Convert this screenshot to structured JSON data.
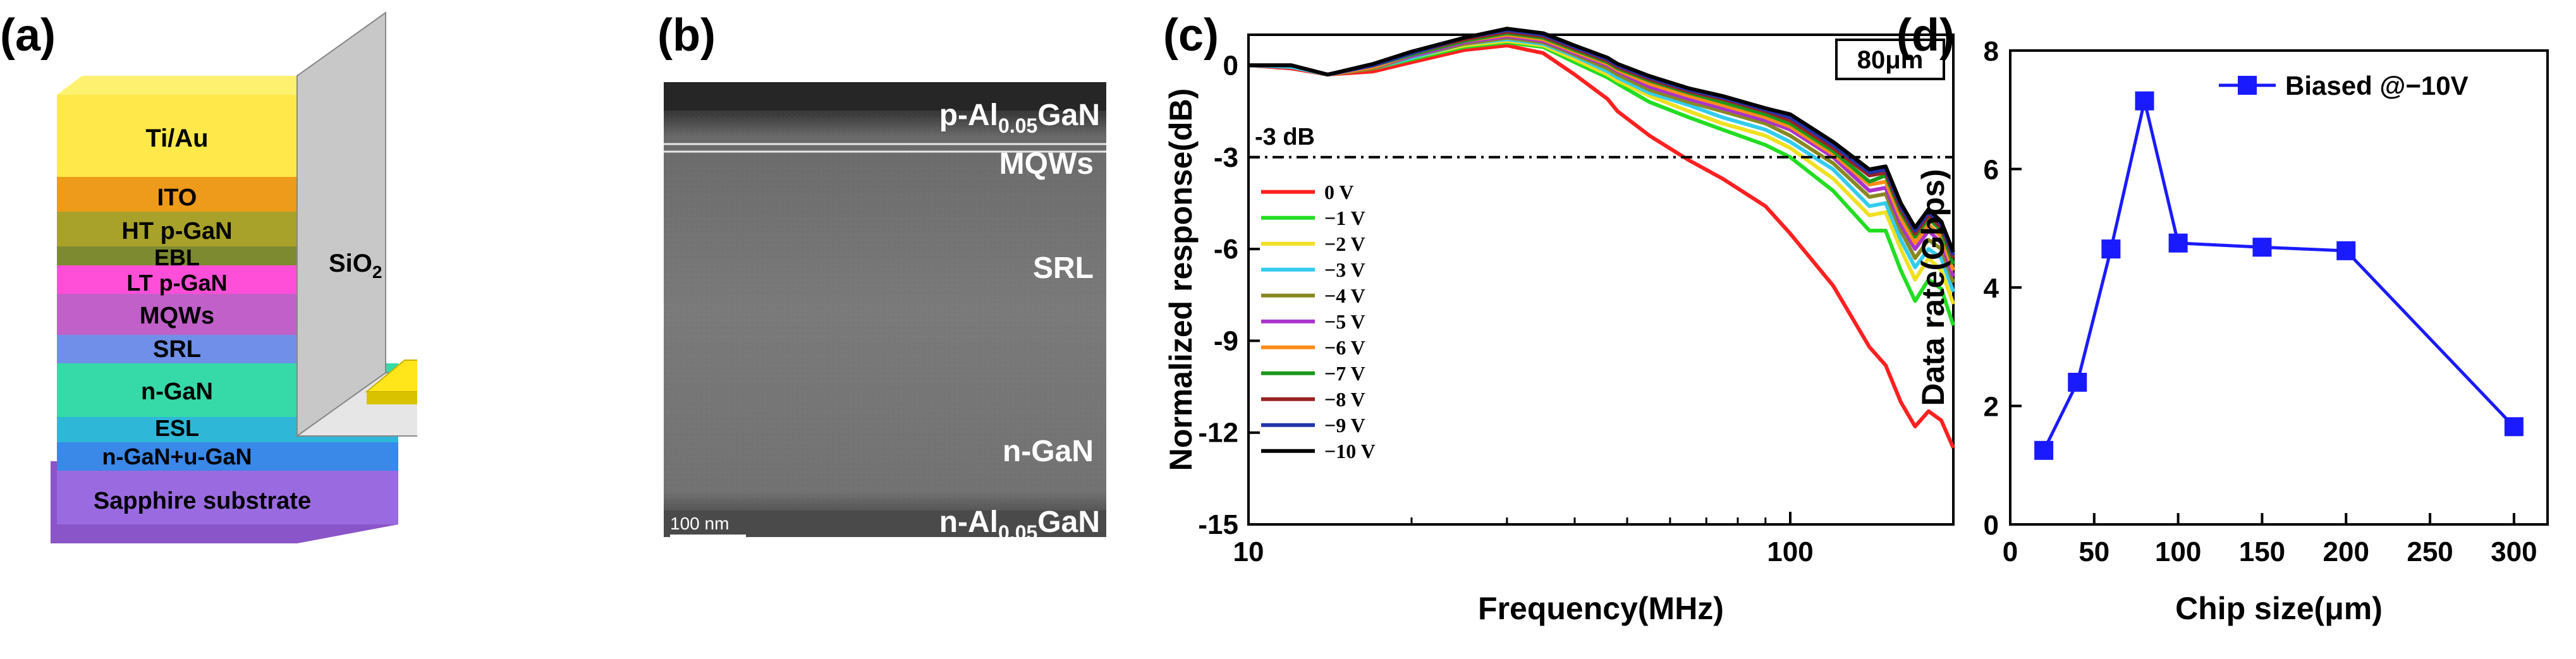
{
  "panels": {
    "a": {
      "label": "(a)"
    },
    "b": {
      "label": "(b)"
    },
    "c": {
      "label": "(c)"
    },
    "d": {
      "label": "(d)"
    }
  },
  "layers": {
    "contact": "Ti/Au",
    "ito": "ITO",
    "ht_pgan": "HT p-GaN",
    "ebl": "EBL",
    "lt_pgan": "LT p-GaN",
    "mqws": "MQWs",
    "srl": "SRL",
    "ngan": "n-GaN",
    "esl": "ESL",
    "ngan_ugan": "n-GaN+u-GaN",
    "substrate": "Sapphire substrate",
    "sio2_main": "SiO",
    "sio2_sub": "2"
  },
  "tem": {
    "top_layer_main": "p-Al",
    "top_layer_sub": "0.05",
    "top_layer_tail": "GaN",
    "mqws": "MQWs",
    "srl": "SRL",
    "ngan": "n-GaN",
    "bottom_layer_main": "n-Al",
    "bottom_layer_sub": "0.05",
    "bottom_layer_tail": "GaN",
    "scale_bar": "100 nm"
  },
  "chart_data": [
    {
      "panel": "c",
      "type": "line",
      "xscale": "log",
      "title": "",
      "xlabel": "Frequency(MHz)",
      "ylabel": "Normalized response(dB)",
      "xlim": [
        10,
        200
      ],
      "ylim": [
        -15,
        1
      ],
      "xticks": [
        10,
        100
      ],
      "xtick_labels": [
        "10",
        "100"
      ],
      "yticks": [
        0,
        -3,
        -6,
        -9,
        -12,
        -15
      ],
      "ytick_labels": [
        "0",
        "-3",
        "-6",
        "-9",
        "-12",
        "-15"
      ],
      "reference_line": {
        "y": -3,
        "label": "-3 dB",
        "style": "dash-dot"
      },
      "annotation": "80μm",
      "legend_position": "left",
      "x": [
        10,
        12,
        14,
        17,
        20,
        25,
        30,
        35,
        40,
        46,
        48,
        55,
        65,
        75,
        90,
        100,
        120,
        140,
        150,
        160,
        170,
        180,
        190,
        200
      ],
      "series": [
        {
          "name": "0 V",
          "color": "#ff2020",
          "values": [
            0,
            -0.1,
            -0.3,
            -0.2,
            0.1,
            0.5,
            0.65,
            0.4,
            -0.3,
            -1.1,
            -1.5,
            -2.3,
            -3.1,
            -3.7,
            -4.6,
            -5.5,
            -7.2,
            -9.2,
            -9.8,
            -11.0,
            -11.8,
            -11.3,
            -11.6,
            -12.5
          ]
        },
        {
          "name": "−1 V",
          "color": "#22dd22",
          "values": [
            0,
            -0.05,
            -0.3,
            -0.1,
            0.2,
            0.6,
            0.75,
            0.6,
            0.1,
            -0.4,
            -0.6,
            -1.2,
            -1.7,
            -2.1,
            -2.6,
            -3.0,
            -4.1,
            -5.4,
            -5.4,
            -6.7,
            -7.7,
            -7.0,
            -7.3,
            -8.5
          ]
        },
        {
          "name": "−2 V",
          "color": "#f0e020",
          "values": [
            0,
            -0.05,
            -0.3,
            -0.1,
            0.25,
            0.65,
            0.8,
            0.65,
            0.2,
            -0.3,
            -0.5,
            -1.0,
            -1.5,
            -1.9,
            -2.3,
            -2.7,
            -3.7,
            -4.9,
            -4.8,
            -6.0,
            -7.0,
            -6.3,
            -6.7,
            -7.8
          ]
        },
        {
          "name": "−3 V",
          "color": "#33ccee",
          "values": [
            0,
            -0.05,
            -0.3,
            -0.1,
            0.25,
            0.7,
            0.85,
            0.7,
            0.3,
            -0.2,
            -0.4,
            -0.9,
            -1.3,
            -1.7,
            -2.1,
            -2.5,
            -3.4,
            -4.6,
            -4.5,
            -5.7,
            -6.6,
            -6.0,
            -6.3,
            -7.4
          ]
        },
        {
          "name": "−4 V",
          "color": "#888822",
          "values": [
            0,
            0,
            -0.3,
            -0.1,
            0.3,
            0.7,
            0.9,
            0.75,
            0.35,
            -0.1,
            -0.3,
            -0.8,
            -1.2,
            -1.5,
            -1.9,
            -2.3,
            -3.2,
            -4.3,
            -4.2,
            -5.4,
            -6.3,
            -5.7,
            -6.0,
            -7.1
          ]
        },
        {
          "name": "−5 V",
          "color": "#aa33cc",
          "values": [
            0,
            0,
            -0.3,
            -0.05,
            0.3,
            0.75,
            0.95,
            0.8,
            0.4,
            0,
            -0.2,
            -0.7,
            -1.1,
            -1.4,
            -1.8,
            -2.1,
            -3.0,
            -4.1,
            -4.0,
            -5.2,
            -6.0,
            -5.4,
            -5.8,
            -6.9
          ]
        },
        {
          "name": "−6 V",
          "color": "#ff8c1a",
          "values": [
            0,
            0,
            -0.3,
            -0.05,
            0.35,
            0.8,
            1.0,
            0.85,
            0.45,
            0.05,
            -0.15,
            -0.6,
            -1.0,
            -1.3,
            -1.7,
            -2.0,
            -2.9,
            -3.9,
            -3.8,
            -5.0,
            -5.8,
            -5.2,
            -5.6,
            -6.7
          ]
        },
        {
          "name": "−7 V",
          "color": "#1a9a1a",
          "values": [
            0,
            0,
            -0.3,
            0,
            0.35,
            0.8,
            1.05,
            0.9,
            0.5,
            0.1,
            -0.1,
            -0.5,
            -0.9,
            -1.2,
            -1.6,
            -1.9,
            -2.8,
            -3.8,
            -3.6,
            -4.8,
            -5.6,
            -5.0,
            -5.4,
            -6.5
          ]
        },
        {
          "name": "−8 V",
          "color": "#992222",
          "values": [
            0,
            0,
            -0.3,
            0,
            0.4,
            0.85,
            1.1,
            0.95,
            0.55,
            0.15,
            -0.05,
            -0.45,
            -0.85,
            -1.1,
            -1.5,
            -1.8,
            -2.7,
            -3.6,
            -3.5,
            -4.7,
            -5.5,
            -4.9,
            -5.3,
            -6.3
          ]
        },
        {
          "name": "−9 V",
          "color": "#2233aa",
          "values": [
            0,
            0,
            -0.3,
            0,
            0.4,
            0.9,
            1.15,
            1.0,
            0.6,
            0.2,
            0,
            -0.4,
            -0.8,
            -1.05,
            -1.45,
            -1.7,
            -2.6,
            -3.5,
            -3.4,
            -4.6,
            -5.4,
            -4.8,
            -5.2,
            -6.2
          ]
        },
        {
          "name": "−10 V",
          "color": "#000000",
          "values": [
            0,
            0,
            -0.3,
            0.05,
            0.45,
            0.9,
            1.2,
            1.05,
            0.65,
            0.25,
            0.05,
            -0.35,
            -0.75,
            -1.0,
            -1.4,
            -1.6,
            -2.5,
            -3.4,
            -3.3,
            -4.5,
            -5.3,
            -4.7,
            -5.1,
            -6.1
          ]
        }
      ]
    },
    {
      "panel": "d",
      "type": "line",
      "title": "",
      "xlabel": "Chip size(μm)",
      "ylabel": "Data rate(Gbps)",
      "xlim": [
        0,
        320
      ],
      "ylim": [
        0,
        8
      ],
      "xticks": [
        0,
        50,
        100,
        150,
        200,
        250,
        300
      ],
      "yticks": [
        0,
        2,
        4,
        6,
        8
      ],
      "legend_position": "top-right",
      "series": [
        {
          "name": "Biased @−10V",
          "color": "#1a1aff",
          "marker": "square",
          "x": [
            20,
            40,
            60,
            80,
            100,
            150,
            200,
            300
          ],
          "values": [
            1.25,
            2.4,
            4.65,
            7.15,
            4.75,
            4.68,
            4.62,
            1.65
          ]
        }
      ]
    }
  ]
}
